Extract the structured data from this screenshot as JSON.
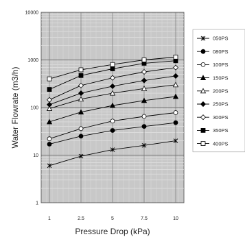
{
  "chart_data": {
    "type": "line",
    "title": "",
    "xlabel": "Pressure Drop (kPa)",
    "ylabel": "Water Flowrate (m3/h)",
    "y_scale": "log",
    "ylim": [
      1,
      10000
    ],
    "grid": true,
    "legend_position": "right",
    "categories": [
      "1",
      "2.5",
      "5",
      "7.5",
      "10"
    ],
    "y_tick_labels": [
      "1",
      "10",
      "100",
      "1000",
      "10000"
    ],
    "series": [
      {
        "name": "050PS",
        "marker": "x",
        "values": [
          6,
          9.5,
          13,
          16,
          20
        ]
      },
      {
        "name": "080PS",
        "marker": "filled-circle",
        "values": [
          17,
          25,
          33,
          40,
          48
        ]
      },
      {
        "name": "100PS",
        "marker": "open-circle",
        "values": [
          22,
          36,
          52,
          65,
          78
        ]
      },
      {
        "name": "150PS",
        "marker": "filled-triangle",
        "values": [
          50,
          80,
          110,
          140,
          170
        ]
      },
      {
        "name": "200PS",
        "marker": "open-triangle",
        "values": [
          95,
          150,
          200,
          250,
          300
        ]
      },
      {
        "name": "250PS",
        "marker": "filled-diamond",
        "values": [
          115,
          200,
          280,
          370,
          460
        ]
      },
      {
        "name": "300PS",
        "marker": "open-diamond",
        "values": [
          145,
          290,
          420,
          560,
          690
        ]
      },
      {
        "name": "350PS",
        "marker": "filled-square",
        "values": [
          240,
          470,
          650,
          850,
          960
        ]
      },
      {
        "name": "400PS",
        "marker": "open-square",
        "values": [
          400,
          620,
          800,
          1000,
          1150
        ]
      }
    ]
  }
}
